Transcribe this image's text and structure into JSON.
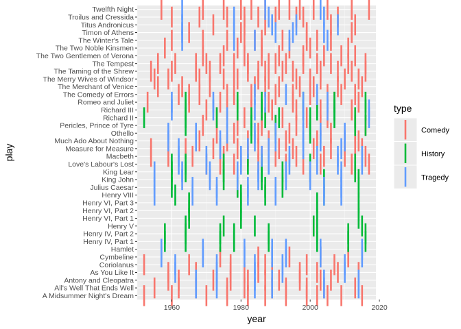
{
  "chart_data": {
    "type": "scatter",
    "mark": "vertical-tick",
    "xlabel": "year",
    "ylabel": "play",
    "xlim": [
      1950,
      2019
    ],
    "x_ticks": [
      1960,
      1980,
      2000,
      2020
    ],
    "grid": true,
    "legend": {
      "title": "type",
      "placement": "right",
      "entries": [
        {
          "name": "Comedy",
          "color": "#f8766d"
        },
        {
          "name": "History",
          "color": "#00ba38"
        },
        {
          "name": "Tragedy",
          "color": "#619cff"
        }
      ]
    },
    "categories": [
      "A Midsummer Night's Dream",
      "All's Well That Ends Well",
      "Antony and Cleopatra",
      "As You Like It",
      "Coriolanus",
      "Cymbeline",
      "Hamlet",
      "Henry IV, Part 1",
      "Henry IV, Part 2",
      "Henry V",
      "Henry VI, Part 1",
      "Henry VI, Part 2",
      "Henry VI, Part 3",
      "Henry VIII",
      "Julius Caesar",
      "King John",
      "King Lear",
      "Love's Labour's Lost",
      "Macbeth",
      "Measure for Measure",
      "Much Ado About Nothing",
      "Othello",
      "Pericles, Prince of Tyre",
      "Richard II",
      "Richard III",
      "Romeo and Juliet",
      "The Comedy of Errors",
      "The Merchant of Venice",
      "The Merry Wives of Windsor",
      "The Taming of the Shrew",
      "The Tempest",
      "The Two Gentlemen of Verona",
      "The Two Noble Kinsmen",
      "The Winter's Tale",
      "Timon of Athens",
      "Titus Andronicus",
      "Troilus and Cressida",
      "Twelfth Night"
    ],
    "series": [
      {
        "name": "Comedy",
        "color": "#f8766d",
        "points": [
          {
            "play": "Twelfth Night",
            "years": [
              1957,
              1969,
              1975,
              1980,
              1983,
              1987,
              1991,
              1994,
              1997,
              2001,
              2005,
              2012,
              2017
            ]
          },
          {
            "play": "Troilus and Cressida",
            "years": [
              1960,
              1968,
              1976,
              1981,
              1985,
              1990,
              1996,
              1998,
              2008
            ]
          },
          {
            "play": "Titus Andronicus",
            "years": [
              1972,
              1981,
              1987,
              2006,
              2013
            ]
          },
          {
            "play": "Timon of Athens",
            "years": [
              1965,
              1980,
              1999,
              2012
            ]
          },
          {
            "play": "The Winter's Tale",
            "years": [
              1960,
              1969,
              1976,
              1981,
              1984,
              1986,
              1992,
              1999,
              2002,
              2006
            ]
          },
          {
            "play": "The Two Noble Kinsmen",
            "years": [
              1958,
              1979,
              1986,
              1994,
              2000,
              2011
            ]
          },
          {
            "play": "The Two Gentlemen of Verona",
            "years": [
              1969,
              1975,
              1981,
              1986,
              1991,
              1998,
              2004,
              2009,
              2013
            ]
          },
          {
            "play": "The Tempest",
            "years": [
              1956,
              1961,
              1967,
              1970,
              1974,
              1978,
              1982,
              1988,
              1990,
              1993,
              1998,
              2002,
              2006,
              2011,
              2016
            ]
          },
          {
            "play": "The Taming of the Shrew",
            "years": [
              1954,
              1960,
              1967,
              1971,
              1978,
              1982,
              1985,
              1987,
              1992,
              1995,
              2003,
              2008,
              2012,
              2016
            ]
          },
          {
            "play": "The Merry Wives of Windsor",
            "years": [
              1955,
              1959,
              1968,
              1975,
              1979,
              1985,
              1988,
              1996,
              2000,
              2003,
              2010,
              2014
            ]
          },
          {
            "play": "The Merchant of Venice",
            "years": [
              1956,
              1963,
              1971,
              1978,
              1984,
              1987,
              1991,
              1997,
              2001,
              2008,
              2015
            ]
          },
          {
            "play": "The Comedy of Errors",
            "years": [
              1962,
              1965,
              1968,
              1976,
              1978,
              1983,
              1990,
              1995,
              2000,
              2005,
              2009,
              2013
            ]
          },
          {
            "play": "Romeo and Juliet",
            "years": [
              1953,
              1965,
              1974,
              1988,
              1995,
              2007,
              2014
            ]
          },
          {
            "play": "Richard III",
            "years": [
              1970,
              1976,
              1983,
              1989,
              1996,
              2003,
              2012
            ]
          },
          {
            "play": "Richard II",
            "years": [
              1973,
              1981,
              1986,
              1992,
              1999,
              2005,
              2013
            ]
          },
          {
            "play": "Pericles, Prince of Tyre",
            "years": [
              1969,
              1979,
              1986,
              1990,
              1996,
              2003,
              2016
            ]
          },
          {
            "play": "Othello",
            "years": [
              1973,
              1978,
              1985,
              1994,
              2000,
              2006,
              2013
            ]
          },
          {
            "play": "Much Ado About Nothing",
            "years": [
              1959,
              1968,
              1976,
              1982,
              1988,
              1993,
              2002,
              2010,
              2014
            ]
          },
          {
            "play": "Measure for Measure",
            "years": [
              1954,
              1964,
              1972,
              1974,
              1979,
              1985,
              1991,
              1995,
              2001,
              2006,
              2013,
              2015
            ]
          },
          {
            "play": "Macbeth",
            "years": [
              1954,
              1959,
              1966,
              1975,
              1982,
              1986,
              1990,
              1996,
              2004,
              2010,
              2016
            ]
          },
          {
            "play": "Love's Labour's Lost",
            "years": [
              1970,
              1974,
              1978,
              1985,
              1993,
              1998,
              2003,
              2012,
              2017
            ]
          },
          {
            "play": "Cymbeline",
            "years": [
              1974,
              1985,
              1994,
              2003,
              2011
            ]
          },
          {
            "play": "Coriolanus",
            "years": [
              1952,
              1965,
              1977,
              1987,
              1999,
              2007
            ]
          },
          {
            "play": "As You Like It",
            "years": [
              1959,
              1967,
              1977,
              1981,
              1985,
              1989,
              1997,
              2002,
              2008,
              2014
            ]
          },
          {
            "play": "Antony and Cleopatra",
            "years": [
              1959,
              1962,
              1972,
              1977,
              1982,
              1987,
              1991,
              1997,
              2003,
              2006
            ]
          },
          {
            "play": "All's Well That Ends Well",
            "years": [
              1955,
              1962,
              1967,
              1976,
              1981,
              1989,
              1993,
              1999,
              2004,
              2013
            ]
          },
          {
            "play": "A Midsummer Night's Dream",
            "years": [
              1952,
              1960,
              1970,
              1976,
              1982,
              1987,
              1993,
              1999,
              2002,
              2005,
              2009,
              2015
            ]
          }
        ]
      },
      {
        "name": "History",
        "color": "#00ba38",
        "points": [
          {
            "play": "Richard III",
            "years": [
              1964,
              1979,
              1986,
              1998,
              2002,
              2007,
              2016
            ]
          },
          {
            "play": "Romeo and Juliet",
            "years": [
              1964,
              1979,
              1986,
              1998,
              2002,
              2007,
              2016
            ]
          },
          {
            "play": "Richard II",
            "years": [
              1952,
              1964,
              1973,
              1983,
              1987,
              1991,
              2000,
              2007,
              2013
            ]
          },
          {
            "play": "Pericles, Prince of Tyre",
            "years": [
              1964,
              1983,
              1990,
              2000,
              2013,
              2016
            ]
          },
          {
            "play": "Othello",
            "years": [
              1983,
              1990,
              2000
            ]
          },
          {
            "play": "Love's Labour's Lost",
            "years": [
              1960,
              1964,
              1975,
              1982,
              1986,
              2000,
              2013
            ]
          },
          {
            "play": "King Lear",
            "years": [
              1960,
              1964,
              1975,
              1986,
              1992,
              2000,
              2013
            ]
          },
          {
            "play": "King John",
            "years": [
              1960,
              1975,
              1986,
              1992,
              2004,
              2014
            ]
          },
          {
            "play": "Julius Caesar",
            "years": [
              1960,
              1979,
              1987,
              1992,
              2004,
              2014
            ]
          },
          {
            "play": "Henry VIII",
            "years": [
              1961,
              1980,
              1987,
              2004
            ]
          },
          {
            "play": "Henry VI, Part 3",
            "years": [
              1965,
              1980,
              2002,
              2014
            ]
          },
          {
            "play": "Henry VI, Part 2",
            "years": [
              1965,
              1980,
              2002,
              2014
            ]
          },
          {
            "play": "Henry VI, Part 1",
            "years": [
              1965,
              1980,
              2002,
              2014
            ]
          },
          {
            "play": "Henry V",
            "years": [
              1964,
              1975,
              1984,
              2001,
              2015
            ]
          },
          {
            "play": "Henry IV, Part 2",
            "years": [
              1958,
              1964,
              1974,
              1978,
              1988,
              2002,
              2011,
              2016
            ]
          },
          {
            "play": "Henry IV, Part 1",
            "years": [
              1958,
              1964,
              1974,
              1978,
              1988,
              2002,
              2011,
              2016
            ]
          }
        ]
      },
      {
        "name": "Tragedy",
        "color": "#619cff",
        "points": [
          {
            "play": "Twelfth Night",
            "years": [
              1963,
              1987,
              2003
            ]
          },
          {
            "play": "Troilus and Cressida",
            "years": [
              1978,
              1988,
              2004
            ]
          },
          {
            "play": "Titus Andronicus",
            "years": [
              1963,
              1978,
              1989,
              1996,
              2008
            ]
          },
          {
            "play": "Timon of Athens",
            "years": [
              1963,
              1978,
              1990,
              1995,
              2004
            ]
          },
          {
            "play": "The Winter's Tale",
            "years": [
              1963,
              1978,
              1984,
              1994,
              2005
            ]
          },
          {
            "play": "The Comedy of Errors",
            "years": [
              1984,
              1993,
              2002
            ]
          },
          {
            "play": "Romeo and Juliet",
            "years": [
              1960,
              1972,
              1987,
              1998,
              2005
            ]
          },
          {
            "play": "Richard III",
            "years": [
              1960,
              1972,
              1984,
              1998,
              2005,
              2017
            ]
          },
          {
            "play": "Richard II",
            "years": [
              1976,
              1998,
              2017
            ]
          },
          {
            "play": "Othello",
            "years": [
              1959,
              1967,
              1976,
              1984,
              1990,
              1998,
              2003,
              2010
            ]
          },
          {
            "play": "Much Ado About Nothing",
            "years": [
              1959,
              1967,
              1974,
              1984,
              1990,
              1998,
              2003,
              2010
            ]
          },
          {
            "play": "Measure for Measure",
            "years": [
              1962,
              1974,
              1982,
              1988,
              1998,
              2009
            ]
          },
          {
            "play": "Macbeth",
            "years": [
              1962,
              1970,
              1980,
              1986,
              1994,
              2002,
              2008,
              2015
            ]
          },
          {
            "play": "Love's Labour's Lost",
            "years": [
              1962,
              1970,
              1980,
              1988,
              1994,
              2002,
              2008,
              2015
            ]
          },
          {
            "play": "King Lear",
            "years": [
              1955,
              1963,
              1971,
              1979,
              1985,
              1993,
              2000,
              2009
            ]
          },
          {
            "play": "King John",
            "years": [
              1955,
              1963,
              1971,
              1979,
              1985,
              1993,
              2000,
              2009
            ]
          },
          {
            "play": "Julius Caesar",
            "years": [
              1955,
              1966,
              1973,
              1982,
              1990,
              2004,
              2009
            ]
          },
          {
            "play": "Henry VIII",
            "years": [
              1955,
              1966,
              1973,
              1982,
              1990,
              2004,
              2009
            ]
          },
          {
            "play": "Hamlet",
            "years": [
              1957,
              1969,
              1981,
              1989,
              1993,
              2003,
              2015
            ]
          },
          {
            "play": "Cymbeline",
            "years": [
              1957,
              1969,
              1981,
              1989,
              1993,
              2003,
              2015
            ]
          },
          {
            "play": "Coriolanus",
            "years": [
              1961,
              1973,
              1984,
              1992,
              2010
            ]
          },
          {
            "play": "As You Like It",
            "years": [
              1961,
              1973,
              1984,
              1992,
              2010
            ]
          },
          {
            "play": "Antony and Cleopatra",
            "years": [
              1967,
              1973,
              1984,
              1989,
              2004,
              2014
            ]
          },
          {
            "play": "All's Well That Ends Well",
            "years": [
              1967,
              1973,
              1984,
              1989,
              2004,
              2014
            ]
          }
        ]
      }
    ]
  }
}
